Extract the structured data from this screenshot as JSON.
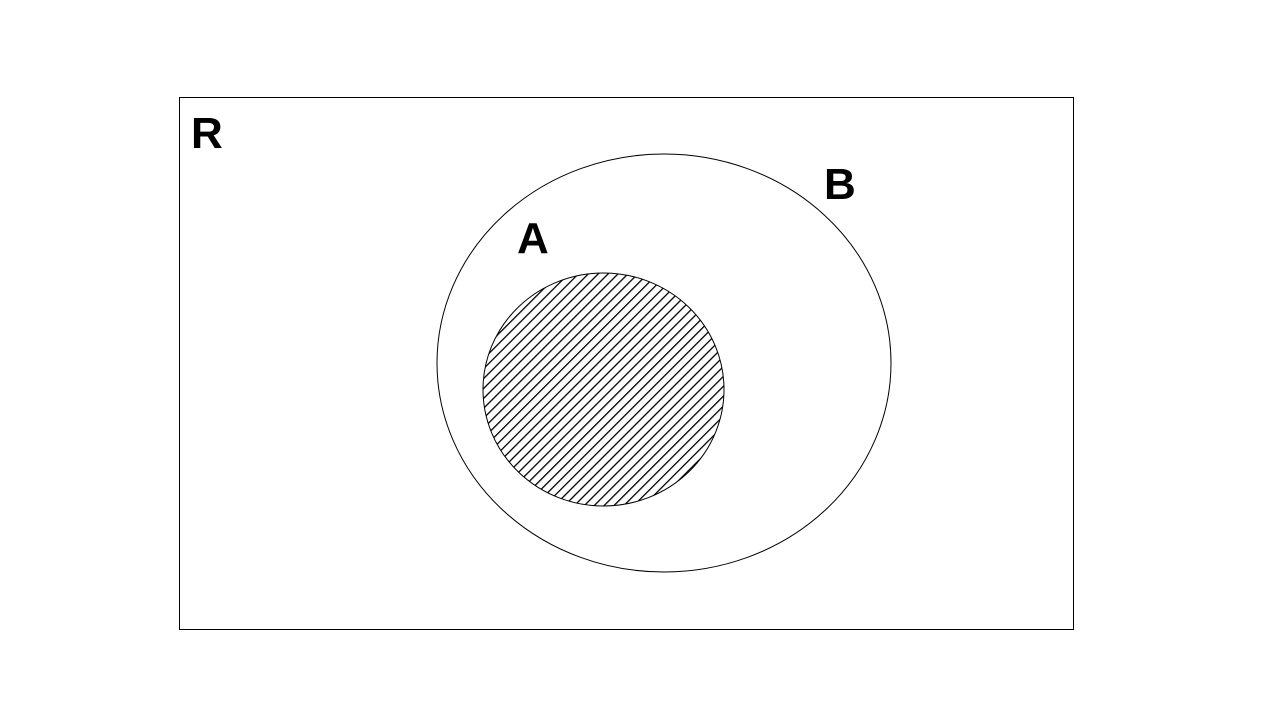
{
  "diagram": {
    "type": "venn",
    "universe": {
      "label": "R"
    },
    "sets": [
      {
        "id": "B",
        "label": "B",
        "contains": [
          "A"
        ],
        "shaded": false
      },
      {
        "id": "A",
        "label": "A",
        "subset_of": "B",
        "shaded": true
      }
    ],
    "colors": {
      "stroke": "#000000",
      "hatch": "#000000",
      "background": "#ffffff"
    }
  }
}
